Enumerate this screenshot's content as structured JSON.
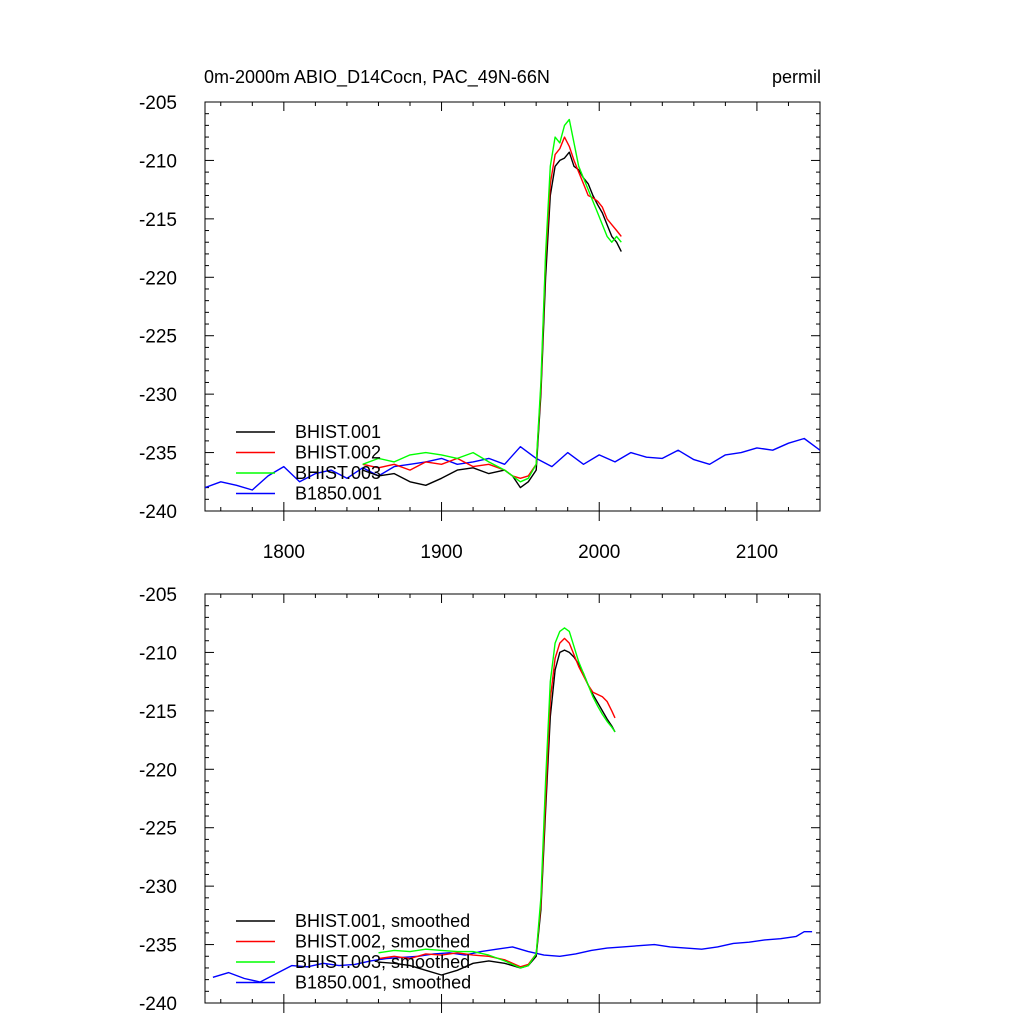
{
  "figure": {
    "title_left": "0m-2000m ABIO_D14Cocn, PAC_49N-66N",
    "title_right": "permil"
  },
  "chart_data": [
    {
      "type": "line",
      "title": "0m-2000m ABIO_D14Cocn, PAC_49N-66N",
      "units": "permil",
      "xlim": [
        1750,
        2140
      ],
      "ylim": [
        -240,
        -205
      ],
      "xticks": [
        1800,
        1900,
        2000,
        2100
      ],
      "yticks": [
        -240,
        -235,
        -230,
        -225,
        -220,
        -215,
        -210,
        -205
      ],
      "legend_position": "bottom-left",
      "series": [
        {
          "name": "BHIST.001",
          "color": "#000000",
          "x": [
            1850,
            1860,
            1870,
            1880,
            1890,
            1900,
            1910,
            1920,
            1930,
            1940,
            1945,
            1950,
            1955,
            1960,
            1963,
            1966,
            1969,
            1972,
            1975,
            1978,
            1981,
            1984,
            1987,
            1990,
            1993,
            1996,
            1999,
            2002,
            2005,
            2008,
            2011,
            2014
          ],
          "y": [
            -236.5,
            -237.0,
            -236.8,
            -237.5,
            -237.8,
            -237.2,
            -236.5,
            -236.3,
            -236.8,
            -236.5,
            -237.0,
            -238.0,
            -237.5,
            -236.5,
            -230.0,
            -220.0,
            -213.0,
            -210.5,
            -210.0,
            -209.8,
            -209.3,
            -210.5,
            -210.8,
            -211.5,
            -212.0,
            -213.0,
            -213.8,
            -214.5,
            -215.5,
            -216.5,
            -217.0,
            -217.8
          ]
        },
        {
          "name": "BHIST.002",
          "color": "#ff0000",
          "x": [
            1850,
            1860,
            1870,
            1880,
            1890,
            1900,
            1910,
            1920,
            1930,
            1940,
            1945,
            1950,
            1955,
            1960,
            1963,
            1966,
            1969,
            1972,
            1975,
            1978,
            1981,
            1984,
            1987,
            1990,
            1993,
            1996,
            1999,
            2002,
            2005,
            2008,
            2011,
            2014
          ],
          "y": [
            -236.0,
            -236.3,
            -236.0,
            -236.5,
            -235.8,
            -236.0,
            -235.5,
            -236.2,
            -236.0,
            -236.5,
            -237.0,
            -237.2,
            -237.0,
            -236.0,
            -229.5,
            -218.5,
            -212.0,
            -209.5,
            -209.0,
            -208.0,
            -208.8,
            -210.0,
            -211.0,
            -212.0,
            -213.0,
            -213.2,
            -213.5,
            -214.0,
            -215.0,
            -215.5,
            -216.0,
            -216.5
          ]
        },
        {
          "name": "BHIST.003",
          "color": "#00ff00",
          "x": [
            1850,
            1860,
            1870,
            1880,
            1890,
            1900,
            1910,
            1920,
            1930,
            1940,
            1945,
            1950,
            1955,
            1960,
            1963,
            1966,
            1969,
            1972,
            1975,
            1978,
            1981,
            1984,
            1987,
            1990,
            1993,
            1996,
            1999,
            2002,
            2005,
            2008,
            2011,
            2014
          ],
          "y": [
            -236.0,
            -235.5,
            -235.8,
            -235.2,
            -235.0,
            -235.2,
            -235.5,
            -235.0,
            -235.8,
            -236.5,
            -237.0,
            -237.5,
            -237.2,
            -236.0,
            -229.0,
            -218.0,
            -210.5,
            -208.0,
            -208.5,
            -207.0,
            -206.5,
            -208.5,
            -210.5,
            -211.5,
            -212.5,
            -213.5,
            -214.5,
            -215.5,
            -216.5,
            -217.0,
            -216.5,
            -217.0
          ]
        },
        {
          "name": "B1850.001",
          "color": "#0000ff",
          "x": [
            1750,
            1760,
            1770,
            1780,
            1790,
            1800,
            1810,
            1820,
            1830,
            1840,
            1850,
            1860,
            1870,
            1880,
            1890,
            1900,
            1910,
            1920,
            1930,
            1940,
            1950,
            1960,
            1970,
            1980,
            1990,
            2000,
            2010,
            2020,
            2030,
            2040,
            2050,
            2060,
            2070,
            2080,
            2090,
            2100,
            2110,
            2120,
            2130,
            2140
          ],
          "y": [
            -238.0,
            -237.5,
            -237.8,
            -238.2,
            -237.0,
            -236.2,
            -237.5,
            -236.8,
            -236.5,
            -237.2,
            -236.3,
            -237.0,
            -236.2,
            -236.0,
            -235.8,
            -235.5,
            -236.0,
            -235.8,
            -235.5,
            -236.0,
            -234.5,
            -235.5,
            -236.2,
            -235.0,
            -236.0,
            -235.2,
            -235.8,
            -235.0,
            -235.4,
            -235.5,
            -234.8,
            -235.6,
            -236.0,
            -235.2,
            -235.0,
            -234.6,
            -234.8,
            -234.2,
            -233.8,
            -234.8
          ]
        }
      ]
    },
    {
      "type": "line",
      "xlim": [
        1750,
        2140
      ],
      "ylim": [
        -240,
        -205
      ],
      "xticks": [
        1800,
        1900,
        2000,
        2100
      ],
      "yticks": [
        -240,
        -235,
        -230,
        -225,
        -220,
        -215,
        -210,
        -205
      ],
      "legend_position": "bottom-left",
      "series": [
        {
          "name": "BHIST.001, smoothed",
          "color": "#000000",
          "x": [
            1860,
            1870,
            1880,
            1890,
            1900,
            1910,
            1920,
            1930,
            1940,
            1945,
            1950,
            1955,
            1960,
            1963,
            1966,
            1969,
            1972,
            1975,
            1978,
            1981,
            1984,
            1987,
            1990,
            1993,
            1996,
            1999,
            2002,
            2005,
            2008,
            2010
          ],
          "y": [
            -236.5,
            -236.6,
            -236.8,
            -237.2,
            -237.6,
            -237.2,
            -236.6,
            -236.4,
            -236.6,
            -236.8,
            -237.0,
            -236.8,
            -236.0,
            -232.0,
            -223.5,
            -215.5,
            -211.5,
            -210.0,
            -209.8,
            -210.0,
            -210.4,
            -211.0,
            -211.8,
            -212.8,
            -213.6,
            -214.3,
            -215.0,
            -215.7,
            -216.3,
            -216.8
          ]
        },
        {
          "name": "BHIST.002, smoothed",
          "color": "#ff0000",
          "x": [
            1860,
            1870,
            1880,
            1890,
            1900,
            1910,
            1920,
            1930,
            1940,
            1945,
            1950,
            1955,
            1960,
            1963,
            1966,
            1969,
            1972,
            1975,
            1978,
            1981,
            1984,
            1987,
            1990,
            1993,
            1996,
            1999,
            2002,
            2005,
            2008,
            2010
          ],
          "y": [
            -236.2,
            -236.0,
            -236.2,
            -235.8,
            -235.9,
            -235.7,
            -235.9,
            -236.0,
            -236.3,
            -236.6,
            -236.9,
            -236.7,
            -235.8,
            -231.5,
            -222.5,
            -214.0,
            -210.5,
            -209.2,
            -208.8,
            -209.2,
            -210.2,
            -211.2,
            -212.0,
            -212.8,
            -213.4,
            -213.6,
            -213.8,
            -214.2,
            -215.0,
            -215.6
          ]
        },
        {
          "name": "BHIST.003, smoothed",
          "color": "#00ff00",
          "x": [
            1860,
            1870,
            1880,
            1890,
            1900,
            1910,
            1920,
            1930,
            1940,
            1945,
            1950,
            1955,
            1960,
            1963,
            1966,
            1969,
            1972,
            1975,
            1978,
            1981,
            1984,
            1987,
            1990,
            1993,
            1996,
            1999,
            2002,
            2005,
            2008,
            2010
          ],
          "y": [
            -235.7,
            -235.5,
            -235.6,
            -235.4,
            -235.5,
            -235.6,
            -235.6,
            -235.9,
            -236.4,
            -236.7,
            -237.0,
            -236.8,
            -235.8,
            -231.0,
            -221.0,
            -212.5,
            -209.2,
            -208.2,
            -207.9,
            -208.2,
            -209.5,
            -210.8,
            -211.8,
            -212.8,
            -213.8,
            -214.6,
            -215.3,
            -215.9,
            -216.4,
            -216.8
          ]
        },
        {
          "name": "B1850.001, smoothed",
          "color": "#0000ff",
          "x": [
            1755,
            1765,
            1775,
            1785,
            1795,
            1805,
            1815,
            1825,
            1835,
            1845,
            1855,
            1865,
            1875,
            1885,
            1895,
            1905,
            1915,
            1925,
            1935,
            1945,
            1955,
            1965,
            1975,
            1985,
            1995,
            2005,
            2015,
            2025,
            2035,
            2045,
            2055,
            2065,
            2075,
            2085,
            2095,
            2105,
            2115,
            2125,
            2130,
            2135
          ],
          "y": [
            -237.8,
            -237.4,
            -237.9,
            -238.2,
            -237.5,
            -236.8,
            -236.9,
            -236.6,
            -236.8,
            -236.7,
            -236.4,
            -236.2,
            -236.1,
            -236.0,
            -235.8,
            -235.7,
            -235.9,
            -235.6,
            -235.4,
            -235.2,
            -235.6,
            -235.9,
            -236.0,
            -235.8,
            -235.5,
            -235.3,
            -235.2,
            -235.1,
            -235.0,
            -235.2,
            -235.3,
            -235.4,
            -235.2,
            -234.9,
            -234.8,
            -234.6,
            -234.5,
            -234.3,
            -233.9,
            -233.9
          ]
        }
      ]
    }
  ]
}
